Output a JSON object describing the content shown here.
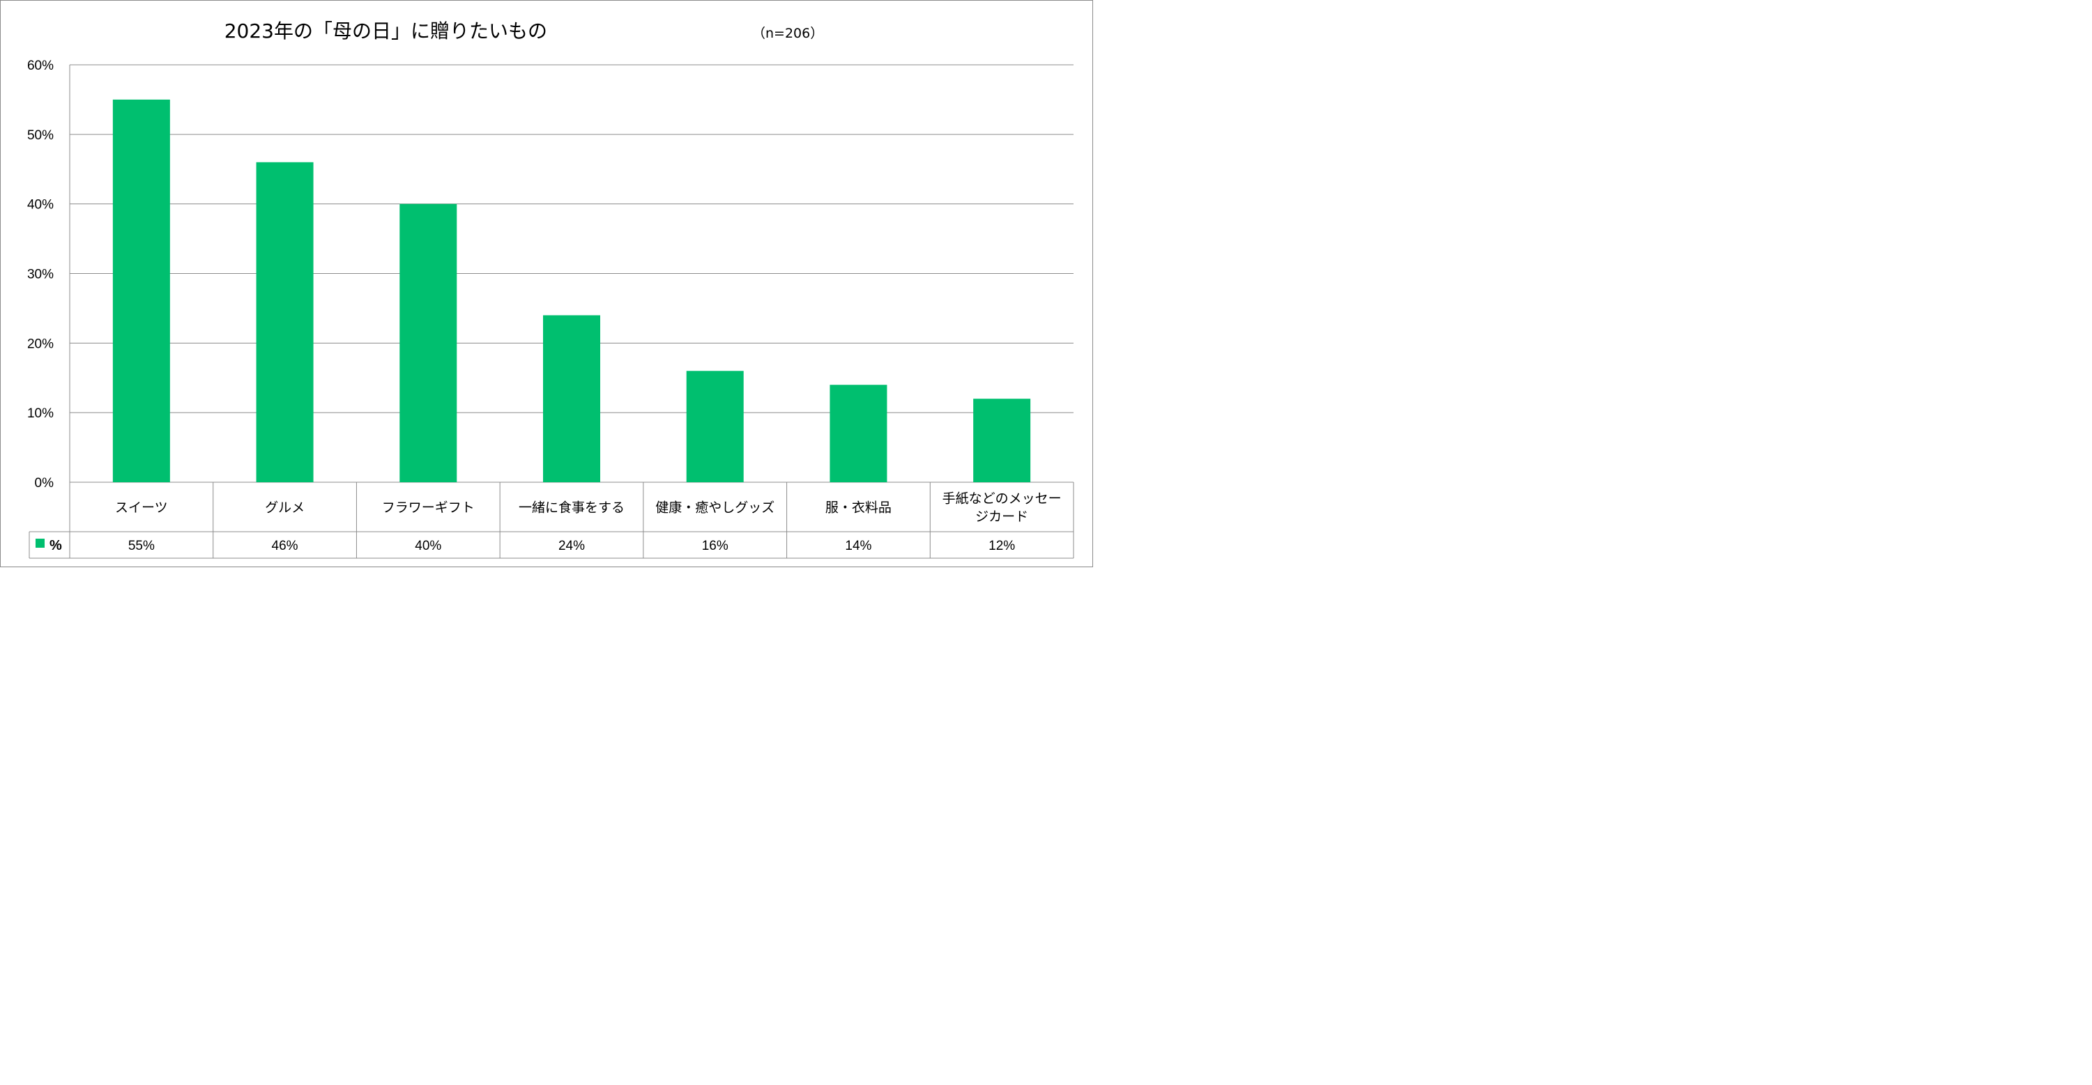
{
  "chart_data": {
    "type": "bar",
    "title": "2023年の「母の日」に贈りたいもの",
    "subtitle": "（n=206）",
    "categories": [
      [
        "スイーツ"
      ],
      [
        "グルメ"
      ],
      [
        "フラワーギフト"
      ],
      [
        "一緒に食事をする"
      ],
      [
        "健康・癒やしグッズ"
      ],
      [
        "服・衣料品"
      ],
      [
        "手紙などのメッセー",
        "ジカード"
      ]
    ],
    "series": [
      {
        "name": "%",
        "values": [
          55,
          46,
          40,
          24,
          16,
          14,
          12
        ],
        "labels": [
          "55%",
          "46%",
          "40%",
          "24%",
          "16%",
          "14%",
          "12%"
        ],
        "color": "#00BF6F"
      }
    ],
    "ylim": [
      0,
      60
    ],
    "yticks": [
      "0%",
      "10%",
      "20%",
      "30%",
      "40%",
      "50%",
      "60%"
    ],
    "grid": true,
    "legend": "data-table",
    "colors": {
      "bar": "#00BF6F",
      "grid": "#8c8c8c",
      "frame": "#8a8a8a"
    }
  }
}
